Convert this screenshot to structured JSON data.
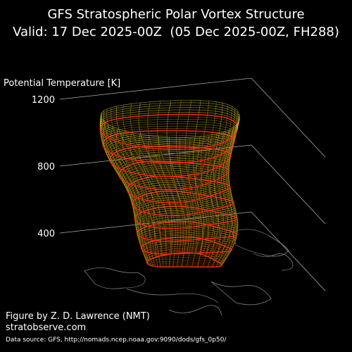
{
  "chart_data": {
    "type": "surface3d",
    "title": "GFS Stratospheric Polar Vortex Structure",
    "subtitle": "Valid: 17 Dec 2025-00Z  (05 Dec 2025-00Z, FH288)",
    "zlabel": "Potential Temperature [K]",
    "zlim": [
      400,
      1200
    ],
    "zticks": [
      400,
      800,
      1200
    ],
    "annotations": [
      "Figure by Z. D. Lawrence (NMT)",
      "stratobserve.com",
      "Data source: GFS, http://nomads.ncep.noaa.gov:9090/dods/gfs_0p50/"
    ]
  }
}
